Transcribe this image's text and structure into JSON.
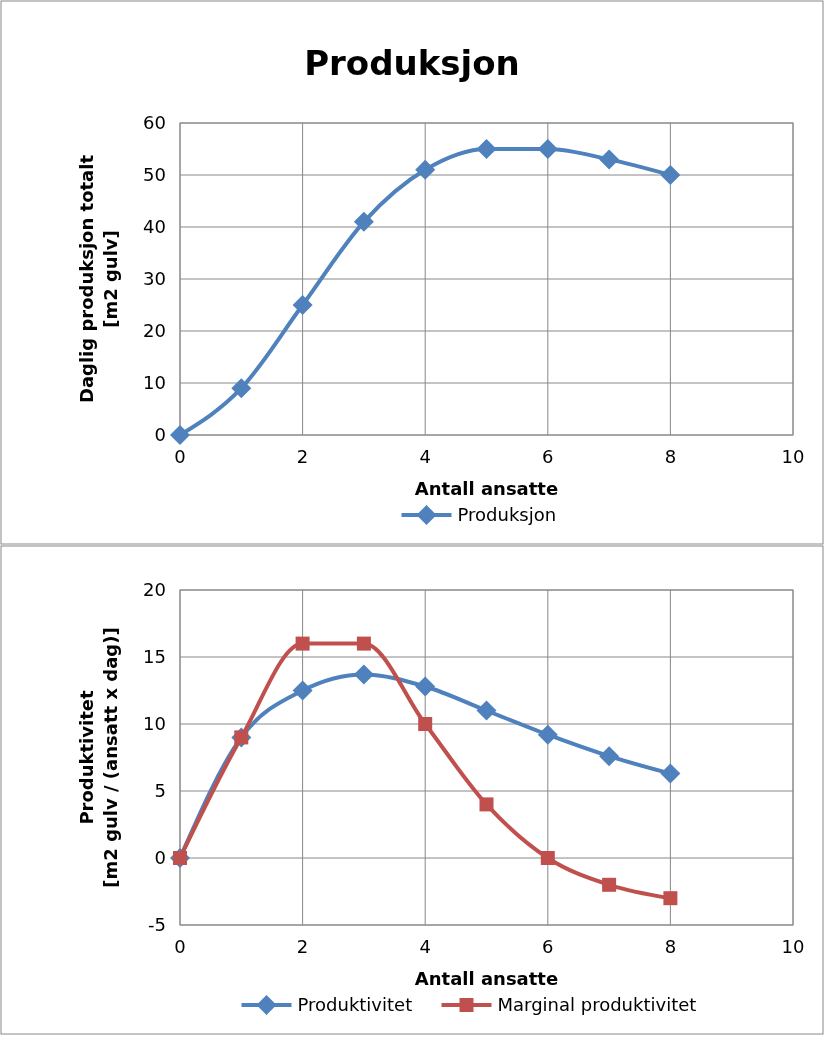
{
  "chart_data": [
    {
      "type": "line",
      "title": "Produksjon",
      "xlabel": "Antall ansatte",
      "ylabel": "Daglig produksjon totalt\n[m2 gulv]",
      "x": [
        0,
        1,
        2,
        3,
        4,
        5,
        6,
        7,
        8
      ],
      "xlim": [
        0,
        10
      ],
      "xticks": [
        0,
        2,
        4,
        6,
        8,
        10
      ],
      "ylim": [
        0,
        60
      ],
      "yticks": [
        0,
        10,
        20,
        30,
        40,
        50,
        60
      ],
      "grid": true,
      "legend": "bottom",
      "series": [
        {
          "name": "Produksjon",
          "color": "#4f81bd",
          "marker": "diamond",
          "values": [
            0,
            9,
            25,
            41,
            51,
            55,
            55,
            53,
            50
          ]
        }
      ]
    },
    {
      "type": "line",
      "xlabel": "Antall ansatte",
      "ylabel": "Produktivitet\n[m2 gulv / (ansatt x dag)]",
      "x": [
        0,
        1,
        2,
        3,
        4,
        5,
        6,
        7,
        8
      ],
      "xlim": [
        0,
        10
      ],
      "xticks": [
        0,
        2,
        4,
        6,
        8,
        10
      ],
      "ylim": [
        -5,
        20
      ],
      "yticks": [
        -5,
        0,
        5,
        10,
        15,
        20
      ],
      "grid": true,
      "legend": "bottom",
      "series": [
        {
          "name": "Produktivitet",
          "color": "#4f81bd",
          "marker": "diamond",
          "values": [
            0,
            9,
            12.5,
            13.7,
            12.8,
            11,
            9.2,
            7.6,
            6.3
          ]
        },
        {
          "name": "Marginal produktivitet",
          "color": "#c0504d",
          "marker": "square",
          "values": [
            0,
            9,
            16,
            16,
            10,
            4,
            0,
            -2,
            -3
          ]
        }
      ]
    }
  ]
}
